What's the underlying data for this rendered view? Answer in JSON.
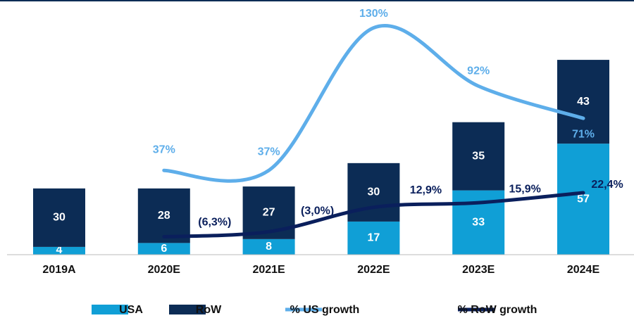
{
  "chart_data": {
    "type": "bar",
    "categories": [
      "2019A",
      "2020E",
      "2021E",
      "2022E",
      "2023E",
      "2024E"
    ],
    "series": [
      {
        "name": "USA",
        "color": "#109fd6",
        "values": [
          4,
          6,
          8,
          17,
          33,
          57
        ]
      },
      {
        "name": "RoW",
        "color": "#0c2c55",
        "values": [
          30,
          28,
          27,
          30,
          35,
          43
        ]
      },
      {
        "name": "% US growth",
        "type": "line",
        "axis": "y2",
        "color": "#5eaeea",
        "values": [
          null,
          37,
          37,
          130,
          92,
          71
        ],
        "value_labels": [
          null,
          "37%",
          "37%",
          "130%",
          "92%",
          "71%"
        ]
      },
      {
        "name": "% RoW growth",
        "type": "line",
        "axis": "y2",
        "color": "#0a1f5c",
        "values": [
          null,
          -6.3,
          -3.0,
          12.9,
          15.9,
          22.4
        ],
        "value_labels": [
          null,
          "(6,3%)",
          "(3,0%)",
          "12,9%",
          "15,9%",
          "22,4%"
        ]
      }
    ],
    "stacked": true,
    "ylim": [
      0,
      123.5
    ],
    "y2lim": [
      -18,
      139
    ],
    "legend": "bottom"
  }
}
